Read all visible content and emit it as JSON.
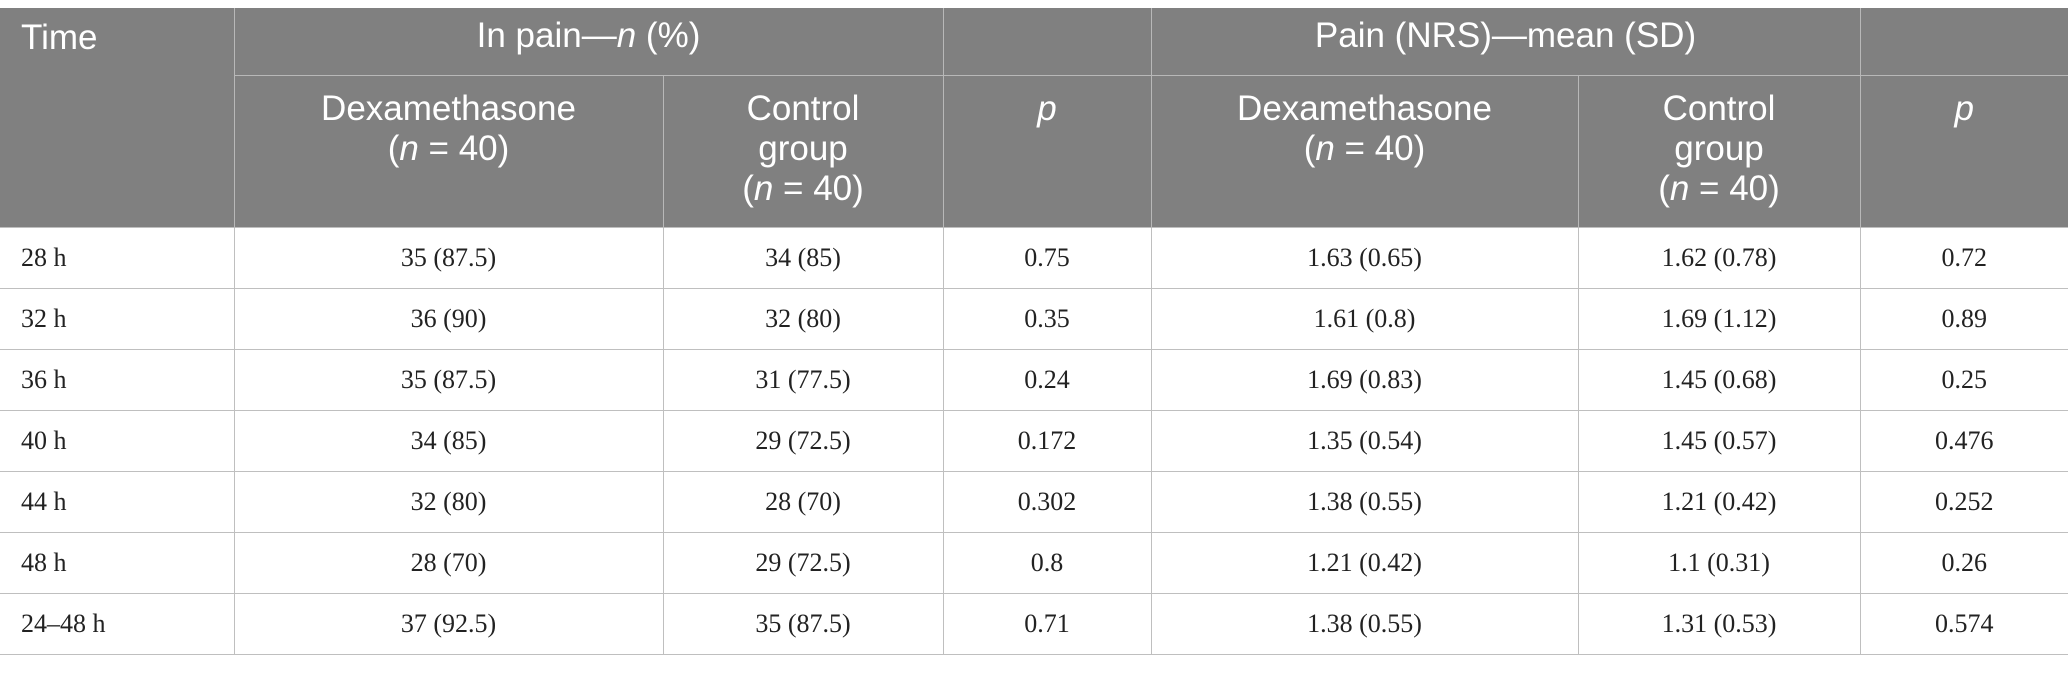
{
  "header": {
    "time": "Time",
    "in_pain_prefix": "In pain—",
    "in_pain_n": "n",
    "in_pain_suffix": " (%)",
    "pain_nrs": "Pain (NRS)—mean (SD)",
    "dexa_line1": "Dexamethasone",
    "control_line1": "Control",
    "control_line2": "group",
    "n_open": "(",
    "n_letter": "n",
    "n_value": " = 40)",
    "p": "p"
  },
  "rows": [
    {
      "time": "28 h",
      "pain_dexa": "35 (87.5)",
      "pain_ctrl": "34 (85)",
      "p1": "0.75",
      "nrs_dexa": "1.63 (0.65)",
      "nrs_ctrl": "1.62 (0.78)",
      "p2": "0.72"
    },
    {
      "time": "32 h",
      "pain_dexa": "36 (90)",
      "pain_ctrl": "32 (80)",
      "p1": "0.35",
      "nrs_dexa": "1.61 (0.8)",
      "nrs_ctrl": "1.69 (1.12)",
      "p2": "0.89"
    },
    {
      "time": "36 h",
      "pain_dexa": "35 (87.5)",
      "pain_ctrl": "31 (77.5)",
      "p1": "0.24",
      "nrs_dexa": "1.69 (0.83)",
      "nrs_ctrl": "1.45 (0.68)",
      "p2": "0.25"
    },
    {
      "time": "40 h",
      "pain_dexa": "34 (85)",
      "pain_ctrl": "29 (72.5)",
      "p1": "0.172",
      "nrs_dexa": "1.35 (0.54)",
      "nrs_ctrl": "1.45 (0.57)",
      "p2": "0.476"
    },
    {
      "time": "44 h",
      "pain_dexa": "32 (80)",
      "pain_ctrl": "28 (70)",
      "p1": "0.302",
      "nrs_dexa": "1.38 (0.55)",
      "nrs_ctrl": "1.21 (0.42)",
      "p2": "0.252"
    },
    {
      "time": "48 h",
      "pain_dexa": "28 (70)",
      "pain_ctrl": "29 (72.5)",
      "p1": "0.8",
      "nrs_dexa": "1.21 (0.42)",
      "nrs_ctrl": "1.1 (0.31)",
      "p2": "0.26"
    },
    {
      "time": "24–48 h",
      "pain_dexa": "37 (92.5)",
      "pain_ctrl": "35 (87.5)",
      "p1": "0.71",
      "nrs_dexa": "1.38 (0.55)",
      "nrs_ctrl": "1.31 (0.53)",
      "p2": "0.574"
    }
  ]
}
